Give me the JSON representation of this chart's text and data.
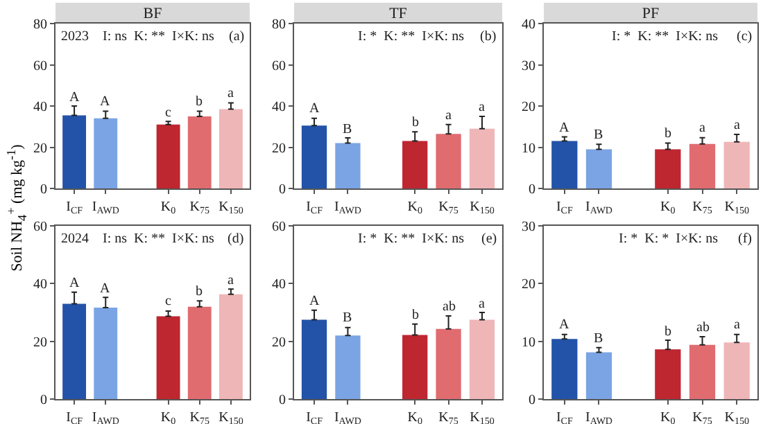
{
  "chart_data": [
    {
      "type": "bar",
      "title": "BF",
      "ylabel": "Soil NH$_{4}$$^{+}$ (mg kg$^{-1}$)",
      "categories": [
        "I$_{CF}$",
        "I$_{AWD}$",
        null,
        "K$_{0}$",
        "K$_{75}$",
        "K$_{150}$"
      ],
      "values": [
        35.5,
        34,
        null,
        31,
        35,
        38.5
      ],
      "errors": [
        [
          35.5,
          40
        ],
        [
          34,
          37.5
        ],
        null,
        [
          31,
          32.5
        ],
        [
          35,
          37.5
        ],
        [
          38.5,
          41.5
        ]
      ],
      "value_labels": [
        "A",
        "A",
        null,
        "c",
        "b",
        "a"
      ],
      "colors": [
        "#2353a8",
        "#7ba4e4",
        null,
        "#be2630",
        "#e06c70",
        "#efb6b8"
      ],
      "ylim": [
        0,
        80
      ],
      "yticks": [
        0,
        20,
        40,
        60,
        80
      ],
      "annotations": [
        "2023",
        "I: ns  K: **  I×K: ns",
        "(a)"
      ],
      "grid": false
    },
    {
      "type": "bar",
      "title": "TF",
      "categories": [
        "I$_{CF}$",
        "I$_{AWD}$",
        null,
        "K$_{0}$",
        "K$_{75}$",
        "K$_{150}$"
      ],
      "values": [
        30.5,
        22,
        null,
        23,
        26.5,
        29
      ],
      "errors": [
        [
          30.5,
          34
        ],
        [
          22,
          24.5
        ],
        null,
        [
          23,
          27.5
        ],
        [
          26.5,
          31
        ],
        [
          29,
          35
        ]
      ],
      "value_labels": [
        "A",
        "B",
        null,
        "b",
        "a",
        "a"
      ],
      "colors": [
        "#2353a8",
        "#7ba4e4",
        null,
        "#be2630",
        "#e06c70",
        "#efb6b8"
      ],
      "ylim": [
        0,
        80
      ],
      "yticks": [
        0,
        20,
        40,
        60,
        80
      ],
      "annotations": [
        "I: *  K: **  I×K: ns",
        "(b)"
      ],
      "grid": false
    },
    {
      "type": "bar",
      "title": "PF",
      "categories": [
        "I$_{CF}$",
        "I$_{AWD}$",
        null,
        "K$_{0}$",
        "K$_{75}$",
        "K$_{150}$"
      ],
      "values": [
        11.5,
        9.5,
        null,
        9.5,
        10.8,
        11.3
      ],
      "errors": [
        [
          11.5,
          12.5
        ],
        [
          9.5,
          10.7
        ],
        null,
        [
          9.5,
          11
        ],
        [
          10.8,
          12.3
        ],
        [
          11.3,
          13.1
        ]
      ],
      "value_labels": [
        "A",
        "B",
        null,
        "b",
        "a",
        "a"
      ],
      "colors": [
        "#2353a8",
        "#7ba4e4",
        null,
        "#be2630",
        "#e06c70",
        "#efb6b8"
      ],
      "ylim": [
        0,
        40
      ],
      "yticks": [
        0,
        10,
        20,
        30,
        40
      ],
      "annotations": [
        "I: *  K: **  I×K: ns",
        "(c)"
      ],
      "grid": false
    },
    {
      "type": "bar",
      "categories": [
        "I$_{CF}$",
        "I$_{AWD}$",
        null,
        "K$_{0}$",
        "K$_{75}$",
        "K$_{150}$"
      ],
      "values": [
        33,
        31.7,
        null,
        28.7,
        32,
        36.3
      ],
      "errors": [
        [
          33,
          37
        ],
        [
          31.7,
          35.2
        ],
        null,
        [
          28.7,
          30.5
        ],
        [
          32,
          34
        ],
        [
          36.3,
          38.1
        ]
      ],
      "value_labels": [
        "A",
        "A",
        null,
        "c",
        "b",
        "a"
      ],
      "colors": [
        "#2353a8",
        "#7ba4e4",
        null,
        "#be2630",
        "#e06c70",
        "#efb6b8"
      ],
      "ylim": [
        0,
        60
      ],
      "yticks": [
        0,
        20,
        40,
        60
      ],
      "annotations": [
        "2024",
        "I: ns  K: **  I×K: ns",
        "(d)"
      ],
      "grid": false
    },
    {
      "type": "bar",
      "categories": [
        "I$_{CF}$",
        "I$_{AWD}$",
        null,
        "K$_{0}$",
        "K$_{75}$",
        "K$_{150}$"
      ],
      "values": [
        27.5,
        22,
        null,
        22.2,
        24.3,
        27.5
      ],
      "errors": [
        [
          27.5,
          30.8
        ],
        [
          22,
          24.8
        ],
        null,
        [
          22.2,
          26
        ],
        [
          24.3,
          28.8
        ],
        [
          27.5,
          30
        ]
      ],
      "value_labels": [
        "A",
        "B",
        null,
        "b",
        "ab",
        "a"
      ],
      "colors": [
        "#2353a8",
        "#7ba4e4",
        null,
        "#be2630",
        "#e06c70",
        "#efb6b8"
      ],
      "ylim": [
        0,
        60
      ],
      "yticks": [
        0,
        20,
        40,
        60
      ],
      "annotations": [
        "I: *  K: **  I×K: ns",
        "(e)"
      ],
      "grid": false
    },
    {
      "type": "bar",
      "categories": [
        "I$_{CF}$",
        "I$_{AWD}$",
        null,
        "K$_{0}$",
        "K$_{75}$",
        "K$_{150}$"
      ],
      "values": [
        10.4,
        8.1,
        null,
        8.6,
        9.4,
        9.8
      ],
      "errors": [
        [
          10.4,
          11.2
        ],
        [
          8.1,
          8.9
        ],
        null,
        [
          8.6,
          10.2
        ],
        [
          9.4,
          10.8
        ],
        [
          9.8,
          11.2
        ]
      ],
      "value_labels": [
        "A",
        "B",
        null,
        "b",
        "ab",
        "a"
      ],
      "colors": [
        "#2353a8",
        "#7ba4e4",
        null,
        "#be2630",
        "#e06c70",
        "#efb6b8"
      ],
      "ylim": [
        0,
        30
      ],
      "yticks": [
        0,
        10,
        20,
        30
      ],
      "annotations": [
        "I: *  K: *  I×K: ns",
        "(f)"
      ],
      "grid": false
    }
  ]
}
